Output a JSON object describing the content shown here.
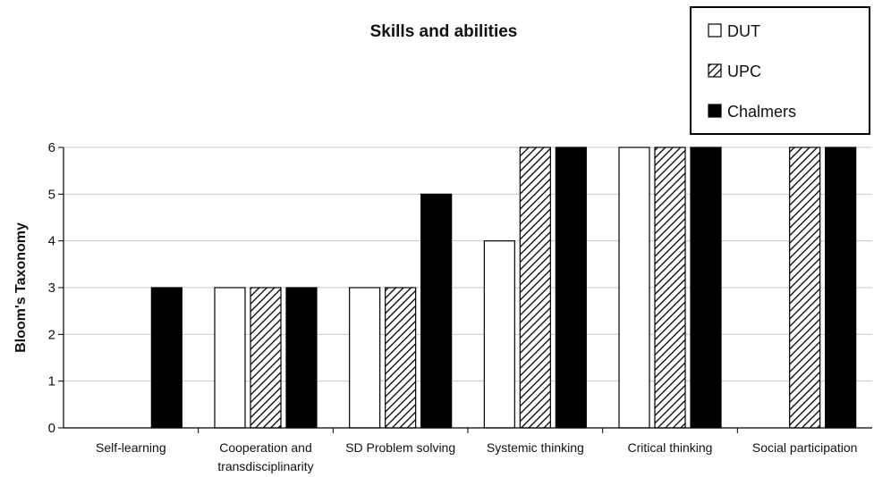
{
  "chart_data": {
    "type": "bar",
    "title": "Skills and abilities",
    "xlabel": "",
    "ylabel": "Bloom's Taxonomy",
    "ylim": [
      0,
      6
    ],
    "yticks": [
      "0",
      "1",
      "2",
      "3",
      "4",
      "5",
      "6"
    ],
    "grid": true,
    "legend_position": "top-right",
    "categories": [
      [
        "Self-learning"
      ],
      [
        "Cooperation and",
        "transdisciplinarity"
      ],
      [
        "SD Problem solving"
      ],
      [
        "Systemic thinking"
      ],
      [
        "Critical thinking"
      ],
      [
        "Social participation"
      ]
    ],
    "series": [
      {
        "name": "DUT",
        "fill": "white",
        "values": [
          0,
          3,
          3,
          4,
          6,
          0
        ]
      },
      {
        "name": "UPC",
        "fill": "hatched",
        "values": [
          0,
          3,
          3,
          6,
          6,
          6
        ]
      },
      {
        "name": "Chalmers",
        "fill": "black",
        "values": [
          3,
          3,
          5,
          6,
          6,
          6
        ]
      }
    ]
  },
  "colors": {
    "dut": "#ffffff",
    "chalmers": "#000000",
    "hatch_fg": "#000000",
    "hatch_bg": "#ffffff",
    "grid": "#c8c8c8"
  }
}
